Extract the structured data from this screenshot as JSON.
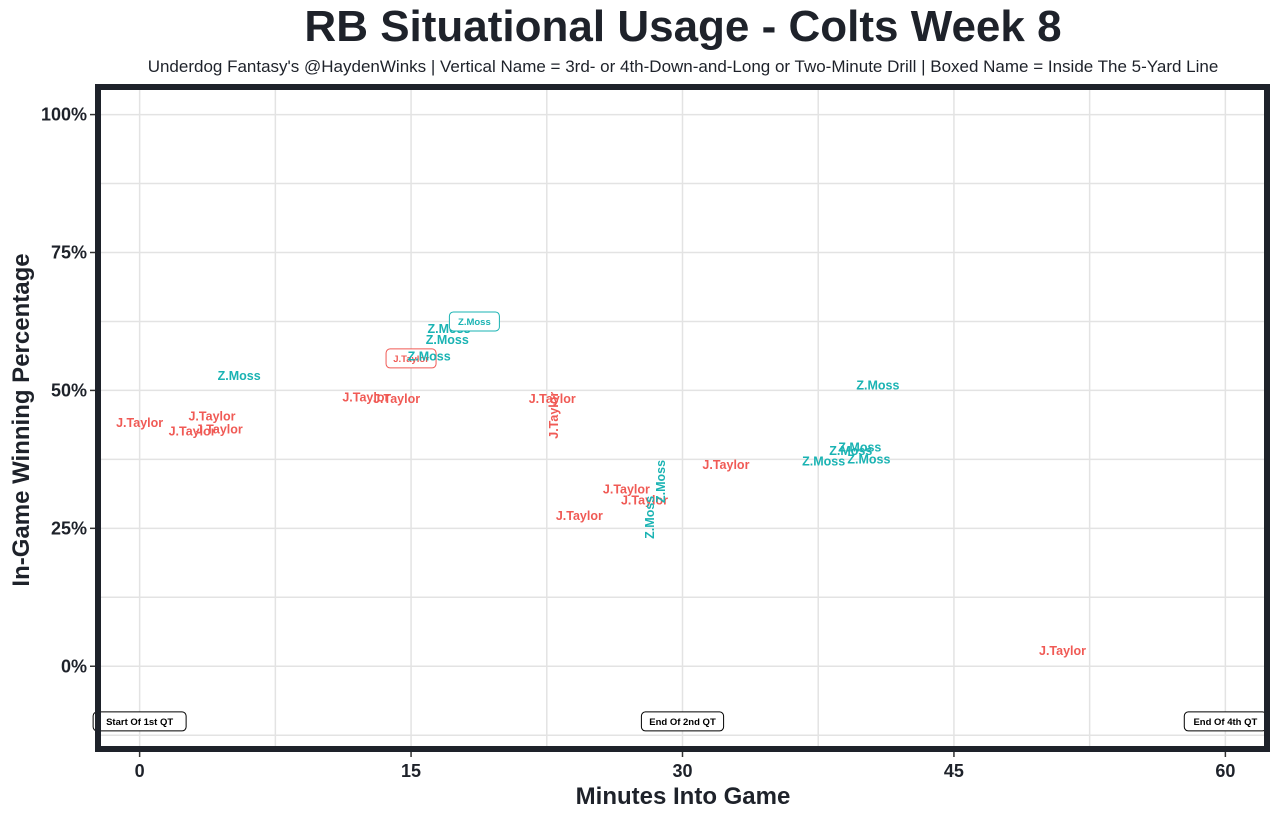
{
  "chart_data": {
    "type": "scatter",
    "title": "RB Situational Usage - Colts Week 8",
    "subtitle": "Underdog Fantasy's @HaydenWinks | Vertical Name = 3rd- or 4th-Down-and-Long or Two-Minute Drill | Boxed Name = Inside The 5-Yard Line",
    "xlabel": "Minutes Into Game",
    "ylabel": "In-Game Winning Percentage",
    "xlim": [
      -2.3,
      62.3
    ],
    "ylim": [
      -15,
      105
    ],
    "x_ticks": [
      {
        "value": 0,
        "label": "0"
      },
      {
        "value": 15,
        "label": "15"
      },
      {
        "value": 30,
        "label": "30"
      },
      {
        "value": 45,
        "label": "45"
      },
      {
        "value": 60,
        "label": "60"
      }
    ],
    "y_ticks": [
      {
        "value": 0,
        "label": "0%"
      },
      {
        "value": 25,
        "label": "25%"
      },
      {
        "value": 50,
        "label": "50%"
      },
      {
        "value": 75,
        "label": "75%"
      },
      {
        "value": 100,
        "label": "100%"
      }
    ],
    "grid": true,
    "colors": {
      "J.Taylor": "#f05a55",
      "Z.Moss": "#1ab3b3"
    },
    "points": [
      {
        "label": "J.Taylor",
        "x": 0.0,
        "y": 44.2
      },
      {
        "label": "J.Taylor",
        "x": 2.9,
        "y": 42.6
      },
      {
        "label": "J.Taylor",
        "x": 4.0,
        "y": 45.4
      },
      {
        "label": "J.Taylor",
        "x": 4.4,
        "y": 43.0
      },
      {
        "label": "Z.Moss",
        "x": 5.5,
        "y": 52.7
      },
      {
        "label": "J.Taylor",
        "x": 12.5,
        "y": 48.8
      },
      {
        "label": "J.Taylor",
        "x": 14.2,
        "y": 48.5
      },
      {
        "label": "J.Taylor",
        "x": 15.0,
        "y": 55.8,
        "boxed": true
      },
      {
        "label": "Z.Moss",
        "x": 16.0,
        "y": 56.2
      },
      {
        "label": "Z.Moss",
        "x": 17.1,
        "y": 61.2
      },
      {
        "label": "Z.Moss",
        "x": 17.0,
        "y": 59.2
      },
      {
        "label": "Z.Moss",
        "x": 18.5,
        "y": 62.5,
        "boxed": true
      },
      {
        "label": "J.Taylor",
        "x": 22.8,
        "y": 48.5
      },
      {
        "label": "J.Taylor",
        "x": 22.9,
        "y": 45.5,
        "vertical": true
      },
      {
        "label": "J.Taylor",
        "x": 24.3,
        "y": 27.3
      },
      {
        "label": "J.Taylor",
        "x": 26.9,
        "y": 32.1
      },
      {
        "label": "J.Taylor",
        "x": 27.9,
        "y": 30.1
      },
      {
        "label": "Z.Moss",
        "x": 28.2,
        "y": 27.0,
        "vertical": true
      },
      {
        "label": "Z.Moss",
        "x": 28.8,
        "y": 33.5,
        "vertical": true
      },
      {
        "label": "J.Taylor",
        "x": 32.4,
        "y": 36.6
      },
      {
        "label": "Z.Moss",
        "x": 37.8,
        "y": 37.2
      },
      {
        "label": "Z.Moss",
        "x": 39.3,
        "y": 39.1
      },
      {
        "label": "Z.Moss",
        "x": 39.8,
        "y": 39.7
      },
      {
        "label": "Z.Moss",
        "x": 40.3,
        "y": 37.6
      },
      {
        "label": "Z.Moss",
        "x": 40.8,
        "y": 51.0
      },
      {
        "label": "J.Taylor",
        "x": 51.0,
        "y": 2.9
      }
    ],
    "annotations": [
      {
        "text": "Start Of 1st QT",
        "x": 0,
        "y": -10
      },
      {
        "text": "End Of 2nd QT",
        "x": 30,
        "y": -10
      },
      {
        "text": "End Of 4th QT",
        "x": 60,
        "y": -10
      }
    ]
  }
}
